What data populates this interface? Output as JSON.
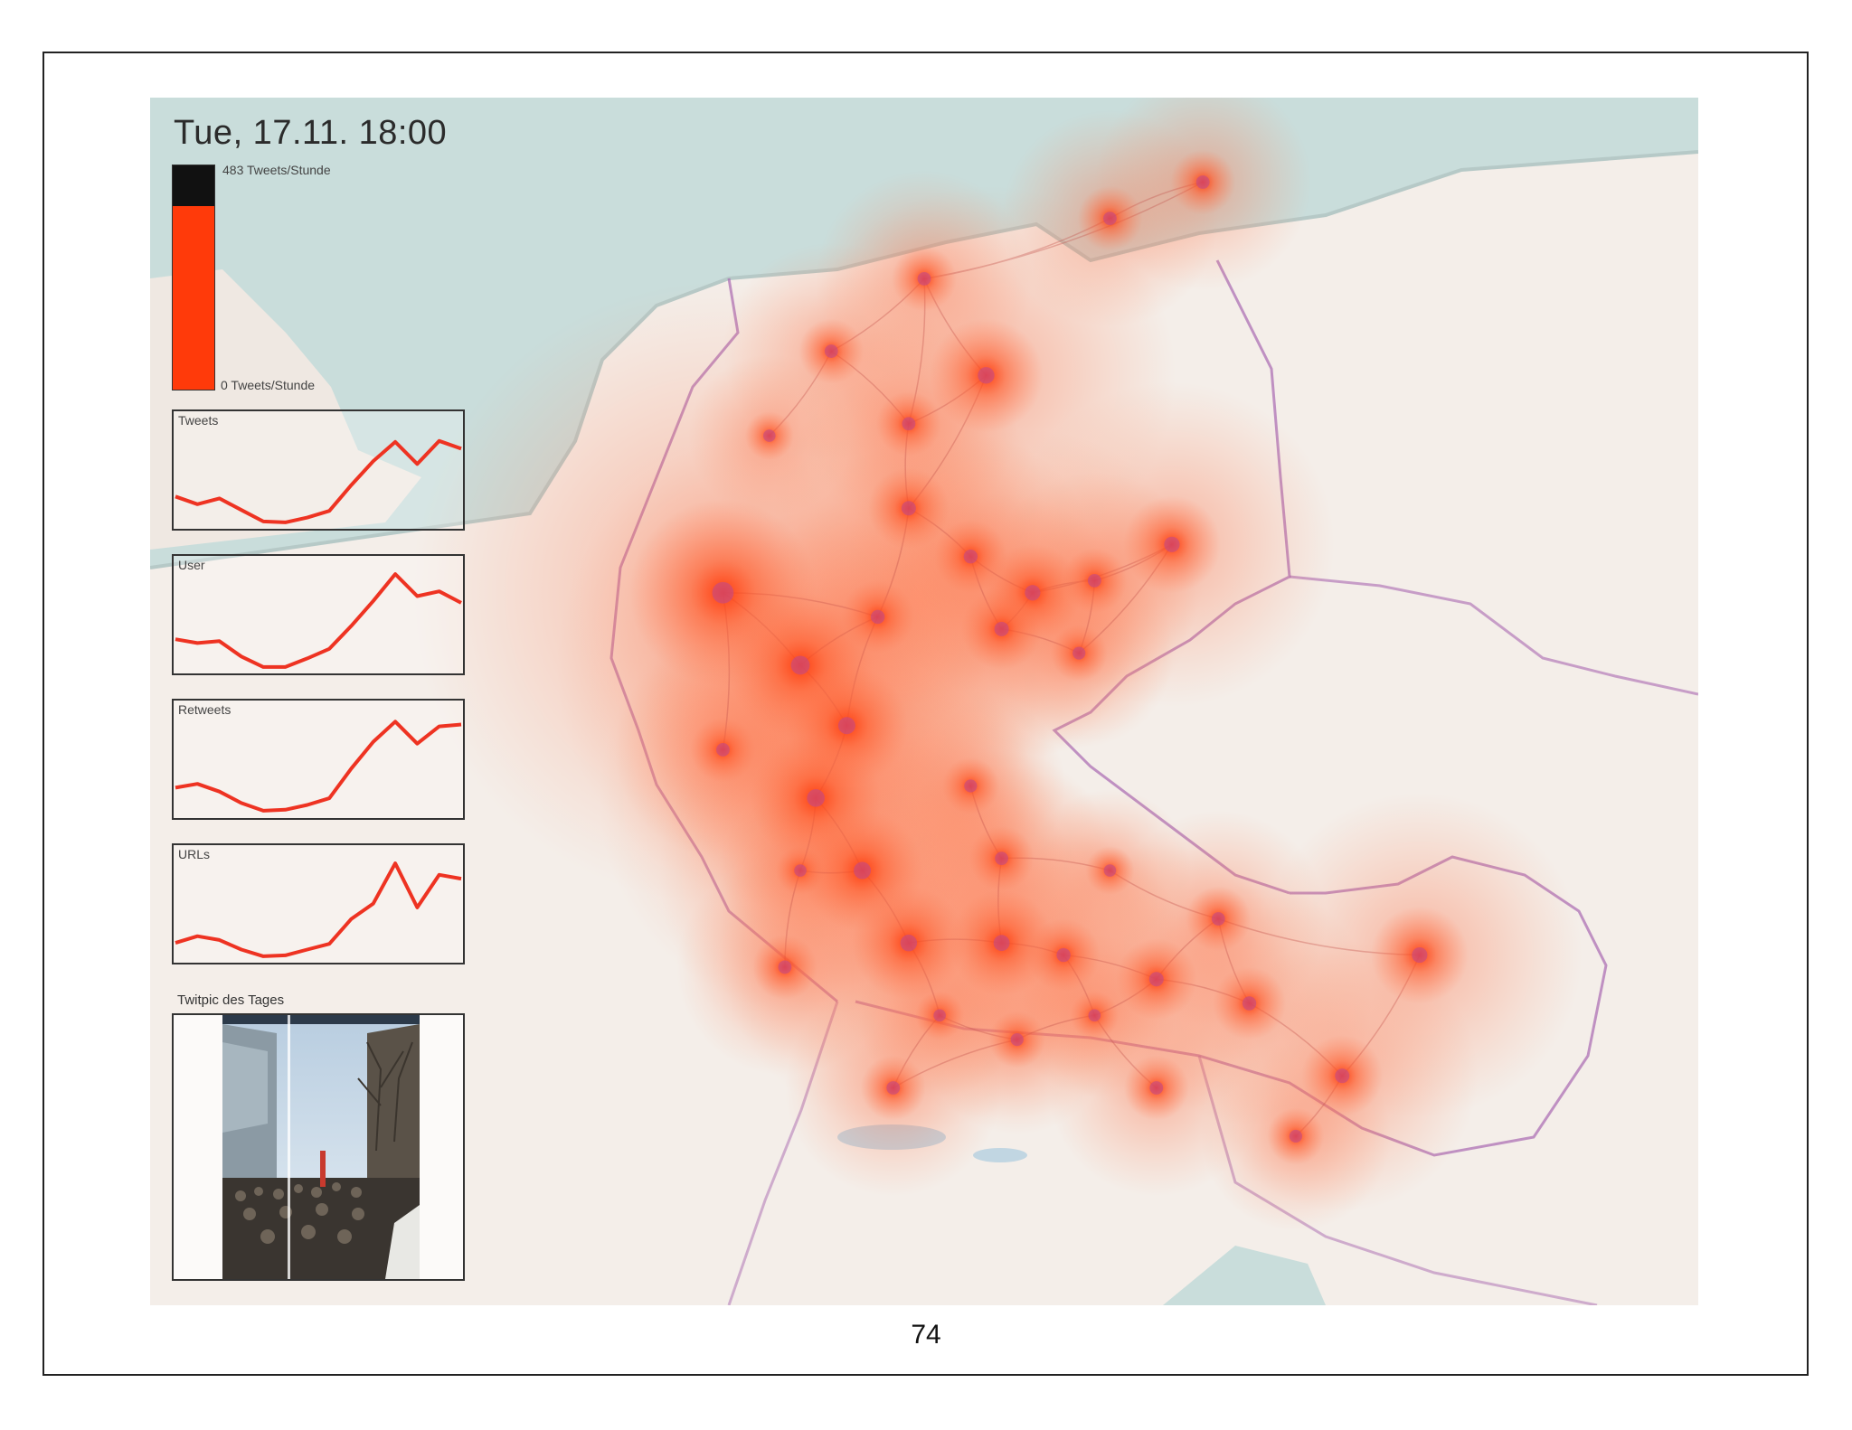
{
  "slide": {
    "page_number": "74"
  },
  "map": {
    "title": "Tue, 17.11. 18:00",
    "legend": {
      "max_label": "483 Tweets/Stunde",
      "min_label": "0 Tweets/Stunde",
      "current_fraction": 0.82,
      "fill_color": "#ff3a0a",
      "empty_color": "#111111"
    },
    "heat_color": "#ff3a0a",
    "charts": [
      {
        "title": "Tweets",
        "values": [
          0.28,
          0.2,
          0.26,
          0.14,
          0.02,
          0.01,
          0.06,
          0.13,
          0.4,
          0.65,
          0.85,
          0.62,
          0.86,
          0.78
        ]
      },
      {
        "title": "User",
        "values": [
          0.3,
          0.26,
          0.28,
          0.12,
          0.01,
          0.01,
          0.1,
          0.2,
          0.44,
          0.7,
          0.98,
          0.75,
          0.8,
          0.68
        ]
      },
      {
        "title": "Retweets",
        "values": [
          0.26,
          0.3,
          0.22,
          0.1,
          0.02,
          0.03,
          0.08,
          0.15,
          0.46,
          0.74,
          0.95,
          0.72,
          0.9,
          0.92
        ]
      },
      {
        "title": "URLs",
        "values": [
          0.15,
          0.22,
          0.18,
          0.08,
          0.01,
          0.02,
          0.08,
          0.14,
          0.4,
          0.56,
          0.98,
          0.52,
          0.86,
          0.82
        ]
      }
    ],
    "line_color": "#ee3322",
    "twitpic": {
      "title": "Twitpic des Tages"
    },
    "hotspots": [
      [
        0.54,
        0.23,
        1.4
      ],
      [
        0.66,
        0.37,
        1.2
      ],
      [
        0.49,
        0.34,
        1.0
      ],
      [
        0.37,
        0.41,
        2.3
      ],
      [
        0.42,
        0.47,
        1.8
      ],
      [
        0.45,
        0.52,
        1.5
      ],
      [
        0.43,
        0.58,
        1.6
      ],
      [
        0.46,
        0.64,
        1.5
      ],
      [
        0.49,
        0.7,
        1.4
      ],
      [
        0.55,
        0.7,
        1.3
      ],
      [
        0.57,
        0.41,
        1.2
      ],
      [
        0.55,
        0.44,
        1.0
      ],
      [
        0.61,
        0.4,
        0.8
      ],
      [
        0.62,
        0.1,
        0.8
      ],
      [
        0.68,
        0.07,
        0.8
      ],
      [
        0.5,
        0.15,
        0.8
      ],
      [
        0.44,
        0.21,
        0.8
      ],
      [
        0.49,
        0.27,
        0.8
      ],
      [
        0.37,
        0.54,
        0.8
      ],
      [
        0.41,
        0.72,
        0.8
      ],
      [
        0.48,
        0.82,
        0.8
      ],
      [
        0.59,
        0.71,
        0.9
      ],
      [
        0.65,
        0.73,
        1.0
      ],
      [
        0.71,
        0.75,
        0.9
      ],
      [
        0.82,
        0.71,
        1.2
      ],
      [
        0.77,
        0.81,
        1.0
      ],
      [
        0.55,
        0.63,
        0.8
      ],
      [
        0.53,
        0.57,
        0.7
      ],
      [
        0.69,
        0.68,
        0.8
      ],
      [
        0.65,
        0.82,
        0.8
      ],
      [
        0.56,
        0.78,
        0.7
      ],
      [
        0.61,
        0.76,
        0.6
      ],
      [
        0.53,
        0.38,
        0.9
      ],
      [
        0.47,
        0.43,
        0.9
      ],
      [
        0.6,
        0.46,
        0.7
      ],
      [
        0.4,
        0.28,
        0.6
      ],
      [
        0.42,
        0.64,
        0.6
      ],
      [
        0.51,
        0.76,
        0.6
      ],
      [
        0.62,
        0.64,
        0.6
      ],
      [
        0.74,
        0.86,
        0.7
      ]
    ]
  }
}
